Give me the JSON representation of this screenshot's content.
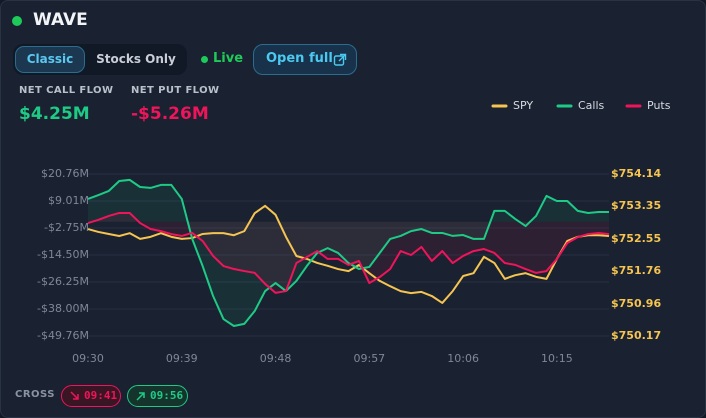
{
  "header": {
    "title": "WAVE",
    "tabs": [
      "Classic",
      "Stocks Only"
    ],
    "status": "Live",
    "button": "Open full"
  },
  "stats": [
    {
      "label": "NET CALL FLOW",
      "value": "$4.25M"
    },
    {
      "label": "NET PUT FLOW",
      "value": "-$5.26M"
    }
  ],
  "chart_data": {
    "type": "line",
    "categories": [
      "09:30",
      null,
      null,
      null,
      null,
      null,
      null,
      null,
      null,
      "09:39",
      null,
      null,
      null,
      null,
      null,
      null,
      null,
      null,
      "09:48",
      null,
      null,
      null,
      null,
      null,
      null,
      null,
      null,
      "09:57",
      null,
      null,
      null,
      null,
      null,
      null,
      null,
      null,
      "10:06",
      null,
      null,
      null,
      null,
      null,
      null,
      null,
      null,
      "10:15",
      null,
      null,
      null,
      null,
      null
    ],
    "series": [
      {
        "name": "SPY",
        "color": "#f5c451",
        "axis": "y2",
        "values": [
          752.79,
          752.72,
          752.67,
          752.62,
          752.69,
          752.55,
          752.6,
          752.69,
          752.6,
          752.55,
          752.57,
          752.67,
          752.69,
          752.69,
          752.64,
          752.74,
          753.18,
          753.36,
          753.14,
          752.6,
          752.13,
          752.06,
          751.96,
          751.89,
          751.81,
          751.76,
          751.91,
          751.71,
          751.52,
          751.39,
          751.27,
          751.22,
          751.25,
          751.15,
          750.98,
          751.27,
          751.64,
          751.71,
          752.11,
          751.96,
          751.57,
          751.66,
          751.71,
          751.62,
          751.57,
          752.06,
          752.5,
          752.6,
          752.64,
          752.64,
          752.62
        ]
      },
      {
        "name": "Calls",
        "color": "#1ecb86",
        "values": [
          9.9,
          11.6,
          13.4,
          17.7,
          18.2,
          15.1,
          14.7,
          16.0,
          16.0,
          9.9,
          -7.5,
          -19.3,
          -32.3,
          -42.4,
          -45.4,
          -44.5,
          -38.9,
          -30.2,
          -26.7,
          -30.2,
          -25.8,
          -19.3,
          -13.6,
          -11.5,
          -13.6,
          -18.0,
          -20.6,
          -19.7,
          -13.6,
          -7.5,
          -6.2,
          -4.1,
          -3.2,
          -4.9,
          -4.9,
          -6.2,
          -5.8,
          -7.5,
          -7.5,
          4.7,
          4.7,
          1.2,
          -1.9,
          2.5,
          11.2,
          9.0,
          9.0,
          4.7,
          3.8,
          4.2,
          4.2
        ]
      },
      {
        "name": "Puts",
        "color": "#f0145a",
        "values": [
          -0.6,
          0.8,
          2.5,
          3.8,
          3.8,
          -0.6,
          -3.2,
          -4.1,
          -5.4,
          -6.2,
          -4.9,
          -8.4,
          -14.9,
          -19.3,
          -20.6,
          -21.5,
          -22.3,
          -27.1,
          -31.0,
          -30.2,
          -18.0,
          -15.4,
          -12.8,
          -16.2,
          -16.2,
          -18.8,
          -17.1,
          -26.7,
          -24.1,
          -20.6,
          -12.8,
          -14.5,
          -11.0,
          -17.1,
          -12.8,
          -18.0,
          -14.9,
          -12.8,
          -11.9,
          -13.6,
          -18.0,
          -18.8,
          -20.6,
          -22.3,
          -21.5,
          -16.2,
          -9.3,
          -6.7,
          -5.4,
          -4.9,
          -5.4
        ]
      }
    ],
    "ylim": [
      -49.76,
      20.76
    ],
    "yticks": [
      {
        "value": 20.76,
        "label": "$20.76M"
      },
      {
        "value": 9.01,
        "label": "$9.01M"
      },
      {
        "value": -2.75,
        "label": "-$2.75M"
      },
      {
        "value": -14.5,
        "label": "-$14.50M"
      },
      {
        "value": -26.25,
        "label": "-$26.25M"
      },
      {
        "value": -38.0,
        "label": "-$38.00M"
      },
      {
        "value": -49.76,
        "label": "-$49.76M"
      }
    ],
    "y2lim": [
      750.17,
      754.14
    ],
    "y2ticks": [
      {
        "value": 754.14,
        "label": "$754.14"
      },
      {
        "value": 753.35,
        "label": "$753.35"
      },
      {
        "value": 752.55,
        "label": "$752.55"
      },
      {
        "value": 751.76,
        "label": "$751.76"
      },
      {
        "value": 750.96,
        "label": "$750.96"
      },
      {
        "value": 750.17,
        "label": "$750.17"
      }
    ],
    "grid": true,
    "legend": "top-right"
  },
  "footer": {
    "label": "CROSS",
    "crosses": [
      "09:41",
      "09:56"
    ]
  }
}
